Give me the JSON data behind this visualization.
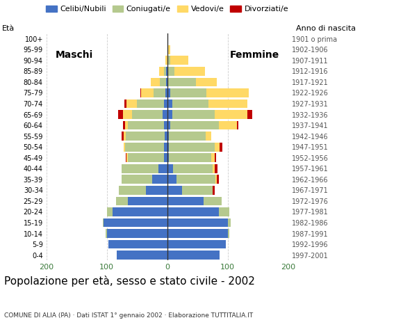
{
  "title": "Popolazione per età, sesso e stato civile - 2002",
  "subtitle": "COMUNE DI ALIA (PA) · Dati ISTAT 1° gennaio 2002 · Elaborazione TUTTITALIA.IT",
  "colors": {
    "celibe": "#4472c4",
    "coniugato": "#b5c98e",
    "vedovo": "#ffd966",
    "divorziato": "#c00000"
  },
  "age_groups_bottom_to_top": [
    "0-4",
    "5-9",
    "10-14",
    "15-19",
    "20-24",
    "25-29",
    "30-34",
    "35-39",
    "40-44",
    "45-49",
    "50-54",
    "55-59",
    "60-64",
    "65-69",
    "70-74",
    "75-79",
    "80-84",
    "85-89",
    "90-94",
    "95-99",
    "100+"
  ],
  "birth_years_bottom_to_top": [
    "1997-2001",
    "1992-1996",
    "1987-1991",
    "1982-1986",
    "1977-1981",
    "1972-1976",
    "1967-1971",
    "1962-1966",
    "1957-1961",
    "1952-1956",
    "1947-1951",
    "1942-1946",
    "1937-1941",
    "1932-1936",
    "1927-1931",
    "1922-1926",
    "1917-1921",
    "1912-1916",
    "1907-1911",
    "1902-1906",
    "1901 o prima"
  ],
  "m_celibe": [
    83,
    97,
    100,
    105,
    90,
    65,
    35,
    25,
    15,
    5,
    5,
    4,
    5,
    8,
    5,
    3,
    2,
    2,
    0,
    0,
    0
  ],
  "m_coniugato": [
    0,
    0,
    2,
    2,
    10,
    20,
    45,
    50,
    60,
    60,
    65,
    65,
    60,
    50,
    45,
    20,
    10,
    3,
    0,
    0,
    0
  ],
  "m_vedovo": [
    0,
    0,
    0,
    0,
    0,
    0,
    0,
    0,
    0,
    2,
    2,
    3,
    5,
    15,
    18,
    20,
    15,
    8,
    3,
    0,
    0
  ],
  "m_divorziato": [
    0,
    0,
    0,
    0,
    0,
    0,
    0,
    0,
    0,
    2,
    0,
    3,
    3,
    8,
    3,
    2,
    0,
    0,
    0,
    0,
    0
  ],
  "f_nubile": [
    87,
    97,
    100,
    100,
    85,
    60,
    25,
    15,
    10,
    3,
    3,
    3,
    5,
    8,
    8,
    5,
    2,
    2,
    0,
    0,
    0
  ],
  "f_coniugata": [
    0,
    0,
    3,
    5,
    18,
    30,
    50,
    65,
    65,
    70,
    75,
    60,
    80,
    70,
    60,
    60,
    45,
    10,
    5,
    2,
    0
  ],
  "f_vedova": [
    0,
    0,
    0,
    0,
    0,
    0,
    0,
    2,
    3,
    5,
    8,
    10,
    30,
    55,
    65,
    70,
    35,
    50,
    30,
    3,
    0
  ],
  "f_divorziata": [
    0,
    0,
    0,
    0,
    0,
    0,
    3,
    3,
    5,
    3,
    5,
    0,
    3,
    8,
    0,
    0,
    0,
    0,
    0,
    0,
    0
  ]
}
